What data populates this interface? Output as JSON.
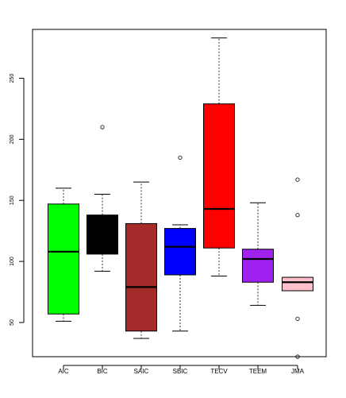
{
  "chart_data": {
    "type": "boxplot",
    "title": "",
    "xlabel": "",
    "ylabel": "",
    "ylim": [
      22,
      290
    ],
    "y_ticks": [
      50,
      100,
      150,
      200,
      250
    ],
    "y_tick_labels": [
      "50",
      "100",
      "150",
      "200",
      "250"
    ],
    "grid": false,
    "legend": "none",
    "categories": [
      "AIC",
      "BIC",
      "SAIC",
      "SBIC",
      "TECV",
      "TEEM",
      "JMA"
    ],
    "boxes": [
      {
        "category": "AIC",
        "color": "#00ff00",
        "whisker_low": 51,
        "q1": 57,
        "median": 108,
        "q3": 147,
        "whisker_high": 160,
        "outliers": []
      },
      {
        "category": "BIC",
        "color": "#000000",
        "whisker_low": 92,
        "q1": 106,
        "median": 119,
        "q3": 138,
        "whisker_high": 155,
        "outliers": [
          210
        ]
      },
      {
        "category": "SAIC",
        "color": "#a52a2a",
        "whisker_low": 37,
        "q1": 43,
        "median": 79,
        "q3": 131,
        "whisker_high": 165,
        "outliers": []
      },
      {
        "category": "SBIC",
        "color": "#0000ff",
        "whisker_low": 43,
        "q1": 89,
        "median": 112,
        "q3": 127,
        "whisker_high": 130,
        "outliers": [
          185
        ]
      },
      {
        "category": "TECV",
        "color": "#ff0000",
        "whisker_low": 88,
        "q1": 111,
        "median": 143,
        "q3": 229,
        "whisker_high": 283,
        "outliers": []
      },
      {
        "category": "TEEM",
        "color": "#a020f0",
        "whisker_low": 64,
        "q1": 83,
        "median": 102,
        "q3": 110,
        "whisker_high": 148,
        "outliers": []
      },
      {
        "category": "JMA",
        "color": "#ffc0cb",
        "whisker_low": 76,
        "q1": 76,
        "median": 83,
        "q3": 87,
        "whisker_high": 87,
        "outliers": [
          167,
          138,
          53,
          22
        ]
      }
    ]
  }
}
